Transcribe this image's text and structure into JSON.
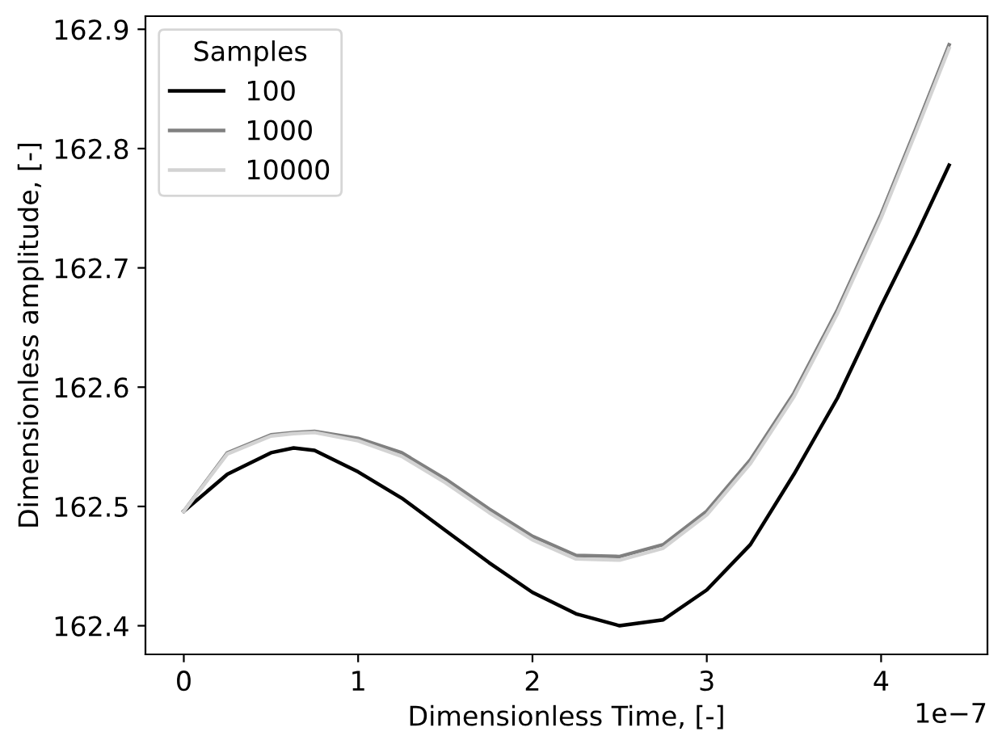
{
  "chart_data": {
    "type": "line",
    "xlabel": "Dimensionless Time, [-]",
    "ylabel": "Dimensionless amplitude, [-]",
    "legend_title": "Samples",
    "legend": "top left",
    "grid": false,
    "x": [
      0,
      0.25,
      0.5,
      0.63,
      0.75,
      1,
      1.25,
      1.5,
      1.75,
      2,
      2.25,
      2.5,
      2.75,
      3,
      3.25,
      3.5,
      3.75,
      4,
      4.2,
      4.39
    ],
    "series": [
      {
        "name": "100",
        "color": "#000000",
        "values": [
          162.496,
          162.527,
          162.545,
          162.549,
          162.547,
          162.529,
          162.507,
          162.48,
          162.453,
          162.428,
          162.41,
          162.4,
          162.405,
          162.43,
          162.468,
          162.527,
          162.591,
          162.668,
          162.727,
          162.786
        ]
      },
      {
        "name": "1000",
        "color": "#808080",
        "values": [
          162.496,
          162.545,
          162.56,
          162.562,
          162.563,
          162.557,
          162.545,
          162.523,
          162.498,
          162.475,
          162.459,
          162.458,
          162.468,
          162.496,
          162.539,
          162.595,
          162.665,
          162.745,
          162.817,
          162.887
        ]
      },
      {
        "name": "10000",
        "color": "#d3d3d3",
        "values": [
          162.496,
          162.544,
          162.559,
          162.561,
          162.562,
          162.555,
          162.542,
          162.52,
          162.495,
          162.472,
          162.456,
          162.455,
          162.465,
          162.493,
          162.536,
          162.592,
          162.662,
          162.742,
          162.814,
          162.884
        ]
      }
    ],
    "xlim": [
      -0.22,
      4.61
    ],
    "xticks": [
      0,
      1,
      2,
      3,
      4
    ],
    "ylim": [
      162.376,
      162.911
    ],
    "yticks": [
      {
        "value": 162.4,
        "label": "162.4"
      },
      {
        "value": 162.5,
        "label": "162.5"
      },
      {
        "value": 162.6,
        "label": "162.6"
      },
      {
        "value": 162.7,
        "label": "162.7"
      },
      {
        "value": 162.8,
        "label": "162.8"
      },
      {
        "value": 162.9,
        "label": "162.9"
      }
    ],
    "annotations": [
      "1e−7"
    ]
  }
}
